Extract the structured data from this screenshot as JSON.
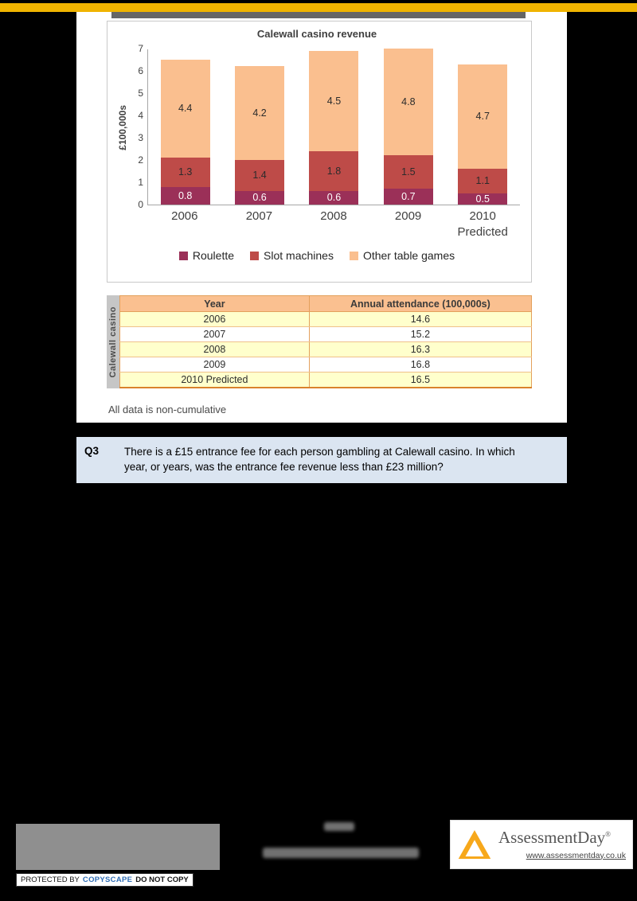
{
  "header": {
    "accent_color": "#F0B400"
  },
  "chart_data": {
    "type": "bar",
    "stacked": true,
    "title": "Calewall casino revenue",
    "ylabel": "£100,000s",
    "xlabel": "",
    "ylim": [
      0,
      7
    ],
    "yticks": [
      0,
      1,
      2,
      3,
      4,
      5,
      6,
      7
    ],
    "grid": false,
    "legend_position": "bottom",
    "categories": [
      "2006",
      "2007",
      "2008",
      "2009",
      "2010"
    ],
    "sublabels": [
      "",
      "",
      "",
      "",
      "Predicted"
    ],
    "series": [
      {
        "name": "Roulette",
        "color": "#9B3058",
        "label_color": "#FFFFFF",
        "values": [
          0.8,
          0.6,
          0.6,
          0.7,
          0.5
        ]
      },
      {
        "name": "Slot machines",
        "color": "#BE4B48",
        "label_color": "#2B2B2B",
        "values": [
          1.3,
          1.4,
          1.8,
          1.5,
          1.1
        ]
      },
      {
        "name": "Other table games",
        "color": "#FABF8F",
        "label_color": "#2B2B2B",
        "values": [
          4.4,
          4.2,
          4.5,
          4.8,
          4.7
        ]
      }
    ]
  },
  "table": {
    "vertical_label": "Calewall casino",
    "headers": [
      "Year",
      "Annual attendance (100,000s)"
    ],
    "rows": [
      [
        "2006",
        "14.6"
      ],
      [
        "2007",
        "15.2"
      ],
      [
        "2008",
        "16.3"
      ],
      [
        "2009",
        "16.8"
      ],
      [
        "2010 Predicted",
        "16.5"
      ]
    ]
  },
  "note": "All data is non-cumulative",
  "question": {
    "number": "Q3",
    "text": "There is a £15 entrance fee for each person gambling at Calewall casino. In which year, or years, was the entrance fee revenue less than £23 million?"
  },
  "footer": {
    "copyscape": {
      "prefix": "PROTECTED BY",
      "brand": "COPYSCAPE",
      "suffix": "DO NOT COPY"
    },
    "brand": {
      "name": "AssessmentDay",
      "registered": "®",
      "url": "www.assessmentday.co.uk"
    }
  }
}
